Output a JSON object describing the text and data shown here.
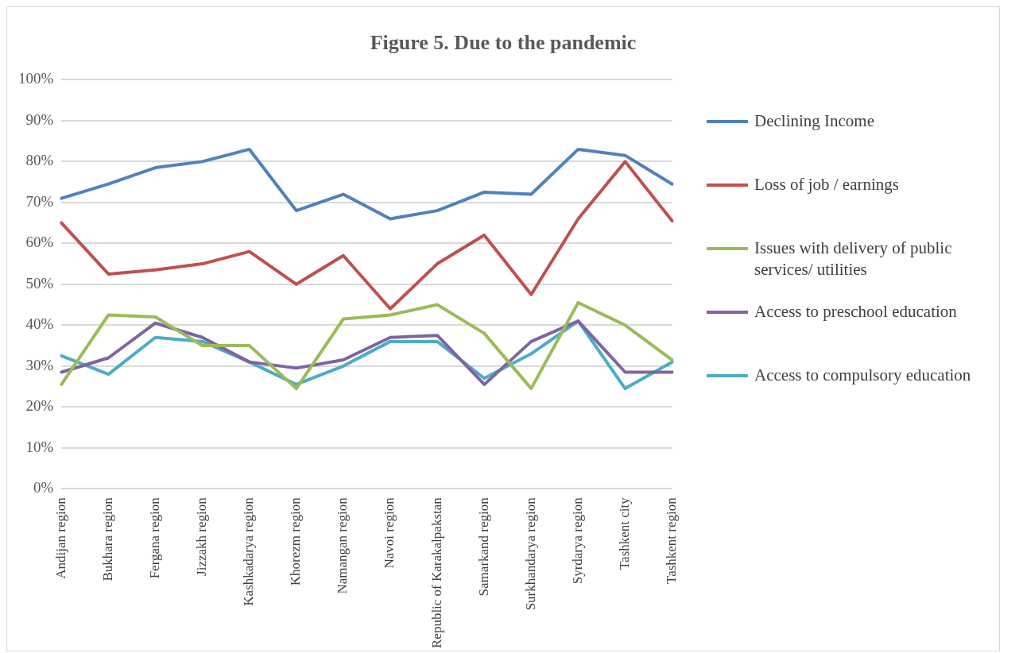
{
  "chart_data": {
    "type": "line",
    "title": "Figure 5. Due to the pandemic",
    "categories": [
      "Andijan region",
      "Bukhara region",
      "Fergana region",
      "Jizzakh region",
      "Kashkadarya region",
      "Khorezm region",
      "Namangan region",
      "Navoi region",
      "Republic of Karakalpakstan",
      "Samarkand region",
      "Surkhandarya region",
      "Syrdarya region",
      "Tashkent city",
      "Tashkent region"
    ],
    "series": [
      {
        "name": "Declining Income",
        "color": "#4f81bd",
        "values": [
          71,
          74.5,
          78.5,
          80,
          83,
          68,
          72,
          66,
          68,
          72.5,
          72,
          83,
          81.5,
          74.5
        ]
      },
      {
        "name": "Loss of job / earnings",
        "color": "#c0504d",
        "values": [
          65,
          52.5,
          53.5,
          55,
          58,
          50,
          57,
          44,
          55,
          62,
          47.5,
          66,
          80,
          65.5
        ]
      },
      {
        "name": "Issues with delivery of public services/ utilities",
        "color": "#9bbb59",
        "values": [
          25.5,
          42.5,
          42,
          35,
          35,
          24.5,
          41.5,
          42.5,
          45,
          38,
          24.5,
          45.5,
          40,
          31.5
        ]
      },
      {
        "name": "Access to preschool education",
        "color": "#8064a2",
        "values": [
          28.5,
          32,
          40.5,
          37,
          31,
          29.5,
          31.5,
          37,
          37.5,
          25.5,
          36,
          41,
          28.5,
          28.5
        ]
      },
      {
        "name": "Access to compulsory education",
        "color": "#4bacc6",
        "values": [
          32.5,
          28,
          37,
          36,
          31,
          25.5,
          30,
          36,
          36,
          27,
          33,
          41,
          24.5,
          31
        ]
      }
    ],
    "ylim": [
      0,
      100
    ],
    "yticks": [
      {
        "value": 0,
        "label": "0%"
      },
      {
        "value": 10,
        "label": "10%"
      },
      {
        "value": 20,
        "label": "20%"
      },
      {
        "value": 30,
        "label": "30%"
      },
      {
        "value": 40,
        "label": "40%"
      },
      {
        "value": 50,
        "label": "50%"
      },
      {
        "value": 60,
        "label": "60%"
      },
      {
        "value": 70,
        "label": "70%"
      },
      {
        "value": 80,
        "label": "80%"
      },
      {
        "value": 90,
        "label": "90%"
      },
      {
        "value": 100,
        "label": "100%"
      }
    ],
    "grid": "y",
    "legend": "right",
    "marker": "none",
    "line_style": "solid"
  }
}
